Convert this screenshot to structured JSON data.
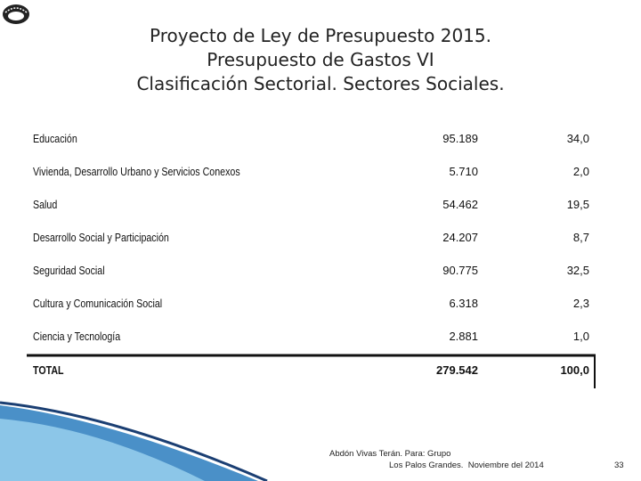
{
  "header": {
    "title": [
      "Proyecto de Ley de Presupuesto 2015.",
      "Presupuesto de Gastos VI",
      "Clasificación Sectorial. Sectores Sociales."
    ]
  },
  "table": {
    "rows": [
      [
        "Educación",
        "95.189",
        "34,0"
      ],
      [
        "Vivienda, Desarrollo Urbano y Servicios Conexos",
        "5.710",
        "2,0"
      ],
      [
        "Salud",
        "54.462",
        "19,5"
      ],
      [
        "Desarrollo Social y Participación",
        "24.207",
        "8,7"
      ],
      [
        "Seguridad Social",
        "90.775",
        "32,5"
      ],
      [
        "Cultura y Comunicación Social",
        "6.318",
        "2,3"
      ],
      [
        "Ciencia y Tecnología",
        "2.881",
        "1,0"
      ]
    ],
    "total": [
      "TOTAL",
      "279.542",
      "100,0"
    ]
  },
  "footer": {
    "lines": [
      "Abdón Vivas Terán. Para: Grupo",
      "Los Palos Grandes.  Noviembre del 2014"
    ],
    "page_number": "33"
  }
}
